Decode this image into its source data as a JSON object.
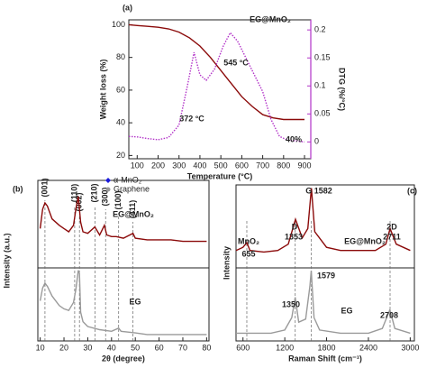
{
  "chart_data": [
    {
      "type": "line",
      "panel_label": "(a)",
      "x_label": "Temperature (°C)",
      "y_label": "Weight loss (%)",
      "y2_label": "DTG (%/°C)",
      "xlim": [
        60,
        930
      ],
      "xticks": [
        100,
        200,
        300,
        400,
        500,
        600,
        700,
        800,
        900
      ],
      "ylim": [
        18,
        103
      ],
      "yticks": [
        20,
        40,
        60,
        80,
        100
      ],
      "y2lim": [
        -0.03,
        0.218
      ],
      "y2ticks": [
        0,
        0.05,
        0.1,
        0.15,
        0.2
      ],
      "y2color": "#b233c8",
      "series": [
        {
          "color": "#8b0a0a",
          "x": [
            60,
            100,
            150,
            200,
            250,
            300,
            350,
            400,
            450,
            500,
            550,
            600,
            650,
            700,
            750,
            800,
            850,
            900
          ],
          "values": [
            100,
            99.5,
            99,
            98.5,
            97.5,
            95.5,
            92,
            87,
            80,
            72,
            64,
            56,
            50,
            45,
            43,
            42,
            42,
            42
          ]
        },
        {
          "color": "#b233c8",
          "axis": "y2",
          "dash": true,
          "x": [
            60,
            100,
            150,
            200,
            250,
            300,
            340,
            372,
            400,
            430,
            470,
            510,
            545,
            580,
            620,
            660,
            700,
            740,
            780,
            820,
            860,
            900
          ],
          "values": [
            0.01,
            0.009,
            0.006,
            0.004,
            0.008,
            0.03,
            0.1,
            0.16,
            0.12,
            0.11,
            0.13,
            0.17,
            0.195,
            0.18,
            0.15,
            0.12,
            0.09,
            0.04,
            0.01,
            0.003,
            0.002,
            0
          ]
        }
      ],
      "annotations": [
        {
          "text": "EG@MnO₂",
          "color": "#111"
        },
        {
          "text": "372 °C",
          "color": "#111"
        },
        {
          "text": "545 °C",
          "color": "#111"
        },
        {
          "text": "40%",
          "color": "#e0191f"
        }
      ]
    },
    {
      "type": "line",
      "panel_label": "(b)",
      "x_label": "2θ (degree)",
      "y_label": "Intensity (a.u.)",
      "xlim": [
        9,
        81
      ],
      "xticks": [
        10,
        20,
        30,
        40,
        50,
        60,
        70,
        80
      ],
      "ylim": [
        0,
        100
      ],
      "series": [
        {
          "name": "EG@MnO₂",
          "color": "#8b0a0a",
          "x": [
            10,
            11,
            12,
            13,
            15,
            18,
            20,
            22,
            24,
            25,
            26,
            27,
            28,
            30,
            33,
            35,
            37,
            38,
            40,
            42,
            45,
            49,
            50,
            55,
            60,
            65,
            70,
            75,
            80
          ],
          "values": [
            70,
            82,
            86,
            84,
            76,
            72,
            70,
            68,
            72,
            82,
            90,
            74,
            68,
            67,
            71,
            66,
            72,
            66,
            65,
            65,
            64,
            67,
            64,
            63,
            63,
            63,
            62,
            62,
            62
          ]
        },
        {
          "name": "EG",
          "color": "#9a9a9a",
          "x": [
            10,
            11,
            12,
            13,
            15,
            18,
            20,
            22,
            24,
            25,
            26,
            26.5,
            27,
            28,
            30,
            35,
            40,
            43,
            44,
            50,
            55,
            60,
            70,
            80
          ],
          "values": [
            25,
            33,
            36,
            34,
            28,
            22,
            20,
            19,
            24,
            32,
            44,
            42,
            18,
            12,
            9,
            7,
            6,
            8,
            6,
            5,
            4,
            4,
            4,
            4
          ]
        }
      ],
      "reflections": [
        {
          "label": "(001)",
          "x": 12,
          "color": "#888"
        },
        {
          "label": "(110)",
          "x": 24.5,
          "color": "#1a1adb"
        },
        {
          "label": "(002)",
          "x": 26.5,
          "color": "#888"
        },
        {
          "label": "(210)",
          "x": 33,
          "color": "#1a1adb"
        },
        {
          "label": "(300)",
          "x": 37.5,
          "color": "#1a1adb"
        },
        {
          "label": "(100)",
          "x": 43,
          "color": "#888"
        },
        {
          "label": "(411)",
          "x": 49,
          "color": "#1a1adb"
        }
      ],
      "legend": [
        {
          "label": "α-MnO₂",
          "color": "#1a1adb",
          "marker": "diamond"
        },
        {
          "label": "Graphene",
          "color": "#999",
          "marker": "circle"
        }
      ]
    },
    {
      "type": "line",
      "panel_label": "(c)",
      "x_label": "Raman Shift (cm⁻¹)",
      "y_label": "Intensity",
      "xlim": [
        500,
        3060
      ],
      "xticks": [
        600,
        1200,
        1800,
        2400,
        3000
      ],
      "ylim": [
        0,
        100
      ],
      "series": [
        {
          "name": "EG@MnO₂",
          "color": "#8b0a0a",
          "x": [
            500,
            600,
            655,
            700,
            900,
            1100,
            1250,
            1353,
            1450,
            1530,
            1582,
            1630,
            1800,
            2000,
            2200,
            2500,
            2650,
            2711,
            2800,
            3000
          ],
          "values": [
            58,
            60,
            63,
            58,
            57,
            58,
            62,
            78,
            66,
            72,
            98,
            70,
            60,
            58,
            58,
            58,
            62,
            72,
            62,
            58
          ]
        },
        {
          "name": "EG",
          "color": "#9a9a9a",
          "x": [
            500,
            1000,
            1200,
            1300,
            1350,
            1400,
            1500,
            1560,
            1579,
            1620,
            1700,
            2000,
            2400,
            2600,
            2708,
            2780,
            3000
          ],
          "values": [
            5,
            5,
            7,
            15,
            28,
            12,
            14,
            35,
            45,
            15,
            7,
            5,
            5,
            8,
            20,
            8,
            5
          ]
        }
      ],
      "reference_x": [
        655,
        1350,
        1582,
        2711
      ],
      "annotations": [
        {
          "text": "D",
          "color": "#111"
        },
        {
          "text": "1353",
          "color": "#111"
        },
        {
          "text": "G 1582",
          "color": "#111"
        },
        {
          "text": "2D",
          "color": "#111"
        },
        {
          "text": "2711",
          "color": "#111"
        },
        {
          "text": "MnO₂",
          "color": "#1a1adb"
        },
        {
          "text": "655",
          "color": "#1a1adb"
        },
        {
          "text": "1579",
          "color": "#111"
        },
        {
          "text": "1350",
          "color": "#111"
        },
        {
          "text": "2708",
          "color": "#111"
        }
      ]
    }
  ]
}
